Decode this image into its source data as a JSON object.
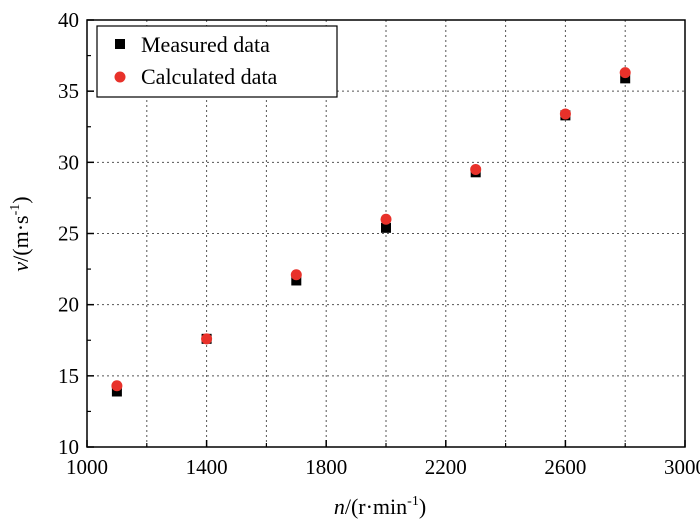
{
  "chart_data": {
    "type": "scatter",
    "x_axis": {
      "variable": "n",
      "unit_prefix": "/(r·min",
      "unit_exponent": "-1",
      "unit_suffix": ")",
      "range": [
        1000,
        3000
      ],
      "ticks": [
        1000,
        1400,
        1800,
        2200,
        2600,
        3000
      ],
      "tick_labels": [
        "1000",
        "1400",
        "1800",
        "2200",
        "2600",
        "3000"
      ]
    },
    "y_axis": {
      "variable": "v",
      "unit_prefix": "/(m·s",
      "unit_exponent": "-1",
      "unit_suffix": ")",
      "range": [
        10,
        40
      ],
      "ticks": [
        10,
        15,
        20,
        25,
        30,
        35,
        40
      ],
      "tick_labels": [
        "10",
        "15",
        "20",
        "25",
        "30",
        "35",
        "40"
      ]
    },
    "grid": true,
    "legend_position": "top-left",
    "series": [
      {
        "name": "Measured data",
        "marker": "square",
        "color": "#000000",
        "x": [
          1100,
          1400,
          1700,
          2000,
          2300,
          2600,
          2800
        ],
        "y": [
          13.9,
          17.6,
          21.7,
          25.4,
          29.3,
          33.3,
          35.9
        ]
      },
      {
        "name": "Calculated data",
        "marker": "circle",
        "color": "#e8312a",
        "x": [
          1100,
          1400,
          1700,
          2000,
          2300,
          2600,
          2800
        ],
        "y": [
          14.3,
          17.6,
          22.1,
          26.0,
          29.5,
          33.4,
          36.3
        ]
      }
    ]
  }
}
